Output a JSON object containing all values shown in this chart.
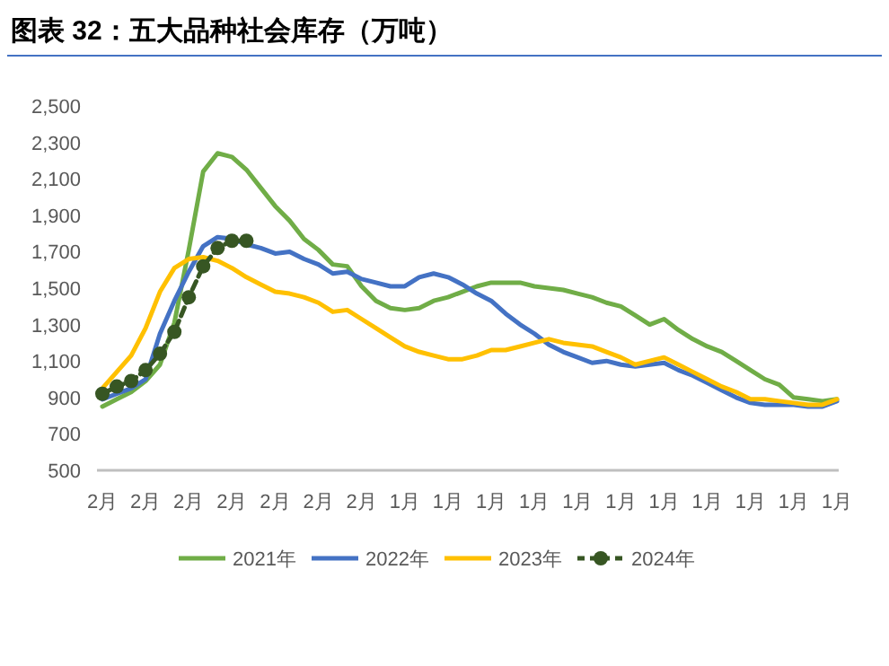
{
  "chart_data": {
    "type": "line",
    "title": "图表 32：五大品种社会库存（万吨）",
    "categories": [
      "2月",
      null,
      null,
      "2月",
      null,
      null,
      "2月",
      null,
      null,
      "2月",
      null,
      null,
      "2月",
      null,
      null,
      "2月",
      null,
      null,
      "2月",
      null,
      null,
      "1月",
      null,
      null,
      "1月",
      null,
      null,
      "1月",
      null,
      null,
      "1月",
      null,
      null,
      "1月",
      null,
      null,
      "1月",
      null,
      null,
      "1月",
      null,
      null,
      "1月",
      null,
      null,
      "1月",
      null,
      null,
      "1月",
      null,
      null,
      "1月"
    ],
    "series": [
      {
        "name": "2021年",
        "color": "#70ad47",
        "values": [
          850,
          890,
          930,
          990,
          1080,
          1310,
          1710,
          2140,
          2240,
          2220,
          2150,
          2050,
          1950,
          1870,
          1770,
          1710,
          1630,
          1620,
          1510,
          1430,
          1390,
          1380,
          1390,
          1430,
          1450,
          1480,
          1510,
          1530,
          1530,
          1530,
          1510,
          1500,
          1490,
          1470,
          1450,
          1420,
          1400,
          1350,
          1300,
          1330,
          1270,
          1220,
          1180,
          1150,
          1100,
          1050,
          1000,
          970,
          900,
          890,
          880,
          890
        ]
      },
      {
        "name": "2022年",
        "color": "#4472c4",
        "values": [
          890,
          920,
          950,
          1000,
          1250,
          1430,
          1590,
          1730,
          1780,
          1770,
          1740,
          1720,
          1690,
          1700,
          1660,
          1630,
          1580,
          1590,
          1550,
          1530,
          1510,
          1510,
          1560,
          1580,
          1560,
          1520,
          1470,
          1430,
          1360,
          1300,
          1250,
          1190,
          1150,
          1120,
          1090,
          1100,
          1080,
          1070,
          1080,
          1090,
          1050,
          1020,
          980,
          940,
          900,
          870,
          860,
          860,
          860,
          850,
          850,
          880
        ]
      },
      {
        "name": "2023年",
        "color": "#ffc000",
        "values": [
          950,
          1040,
          1130,
          1280,
          1480,
          1610,
          1660,
          1670,
          1650,
          1610,
          1560,
          1520,
          1480,
          1470,
          1450,
          1420,
          1370,
          1380,
          1330,
          1280,
          1230,
          1180,
          1150,
          1130,
          1110,
          1110,
          1130,
          1160,
          1160,
          1180,
          1200,
          1220,
          1200,
          1190,
          1180,
          1150,
          1120,
          1080,
          1100,
          1120,
          1080,
          1040,
          1000,
          960,
          930,
          890,
          890,
          880,
          870,
          860,
          860,
          890
        ]
      },
      {
        "name": "2024年",
        "color": "#375623",
        "line_style": "dashed",
        "marker": "circle",
        "values": [
          920,
          960,
          990,
          1050,
          1140,
          1260,
          1450,
          1620,
          1720,
          1760,
          1760,
          null,
          null,
          null,
          null,
          null,
          null,
          null,
          null,
          null,
          null,
          null,
          null,
          null,
          null,
          null,
          null,
          null,
          null,
          null,
          null,
          null,
          null,
          null,
          null,
          null,
          null,
          null,
          null,
          null,
          null,
          null,
          null,
          null,
          null,
          null,
          null,
          null,
          null,
          null,
          null,
          null
        ]
      }
    ],
    "ylim": [
      500,
      2500
    ],
    "yticks": [
      500,
      700,
      900,
      {
        "value": 1100,
        "label": "1,100"
      },
      {
        "value": 1300,
        "label": "1,300"
      },
      {
        "value": 1500,
        "label": "1,500"
      },
      {
        "value": 1700,
        "label": "1,700"
      },
      {
        "value": 1900,
        "label": "1,900"
      },
      {
        "value": 2100,
        "label": "2,100"
      },
      {
        "value": 2300,
        "label": "2,300"
      },
      {
        "value": 2500,
        "label": "2,500"
      }
    ],
    "grid": false,
    "legend": "bottom"
  }
}
